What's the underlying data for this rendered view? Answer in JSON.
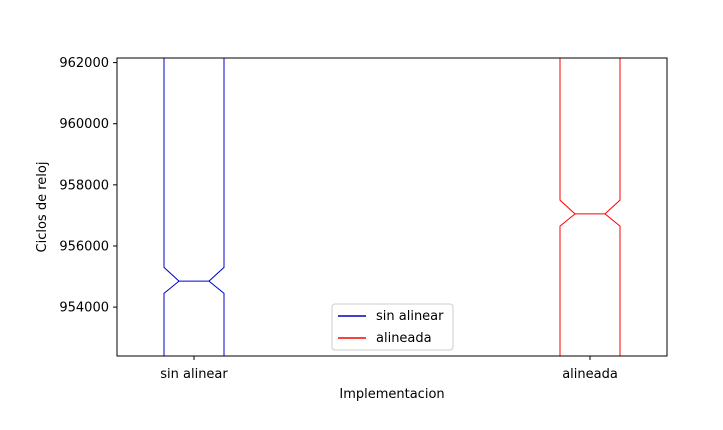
{
  "chart_data": {
    "type": "boxplot",
    "title": "",
    "xlabel": "Implementacion",
    "ylabel": "Ciclos de reloj",
    "ylim": [
      952400,
      962150
    ],
    "yticks": [
      954000,
      956000,
      958000,
      960000,
      962000
    ],
    "categories": [
      "sin alinear",
      "alineada"
    ],
    "grid": false,
    "notched": true,
    "legend": {
      "position": "lower-center",
      "entries": [
        "sin alinear",
        "alineada"
      ]
    },
    "series": [
      {
        "name": "sin alinear",
        "color": "#0000cc",
        "median": 954850,
        "notch_low": 954450,
        "notch_high": 955300,
        "q1": 952400,
        "q3": 962150
      },
      {
        "name": "alineada",
        "color": "#ff0000",
        "median": 957050,
        "notch_low": 956650,
        "notch_high": 957500,
        "q1": 952400,
        "q3": 962150
      }
    ]
  }
}
